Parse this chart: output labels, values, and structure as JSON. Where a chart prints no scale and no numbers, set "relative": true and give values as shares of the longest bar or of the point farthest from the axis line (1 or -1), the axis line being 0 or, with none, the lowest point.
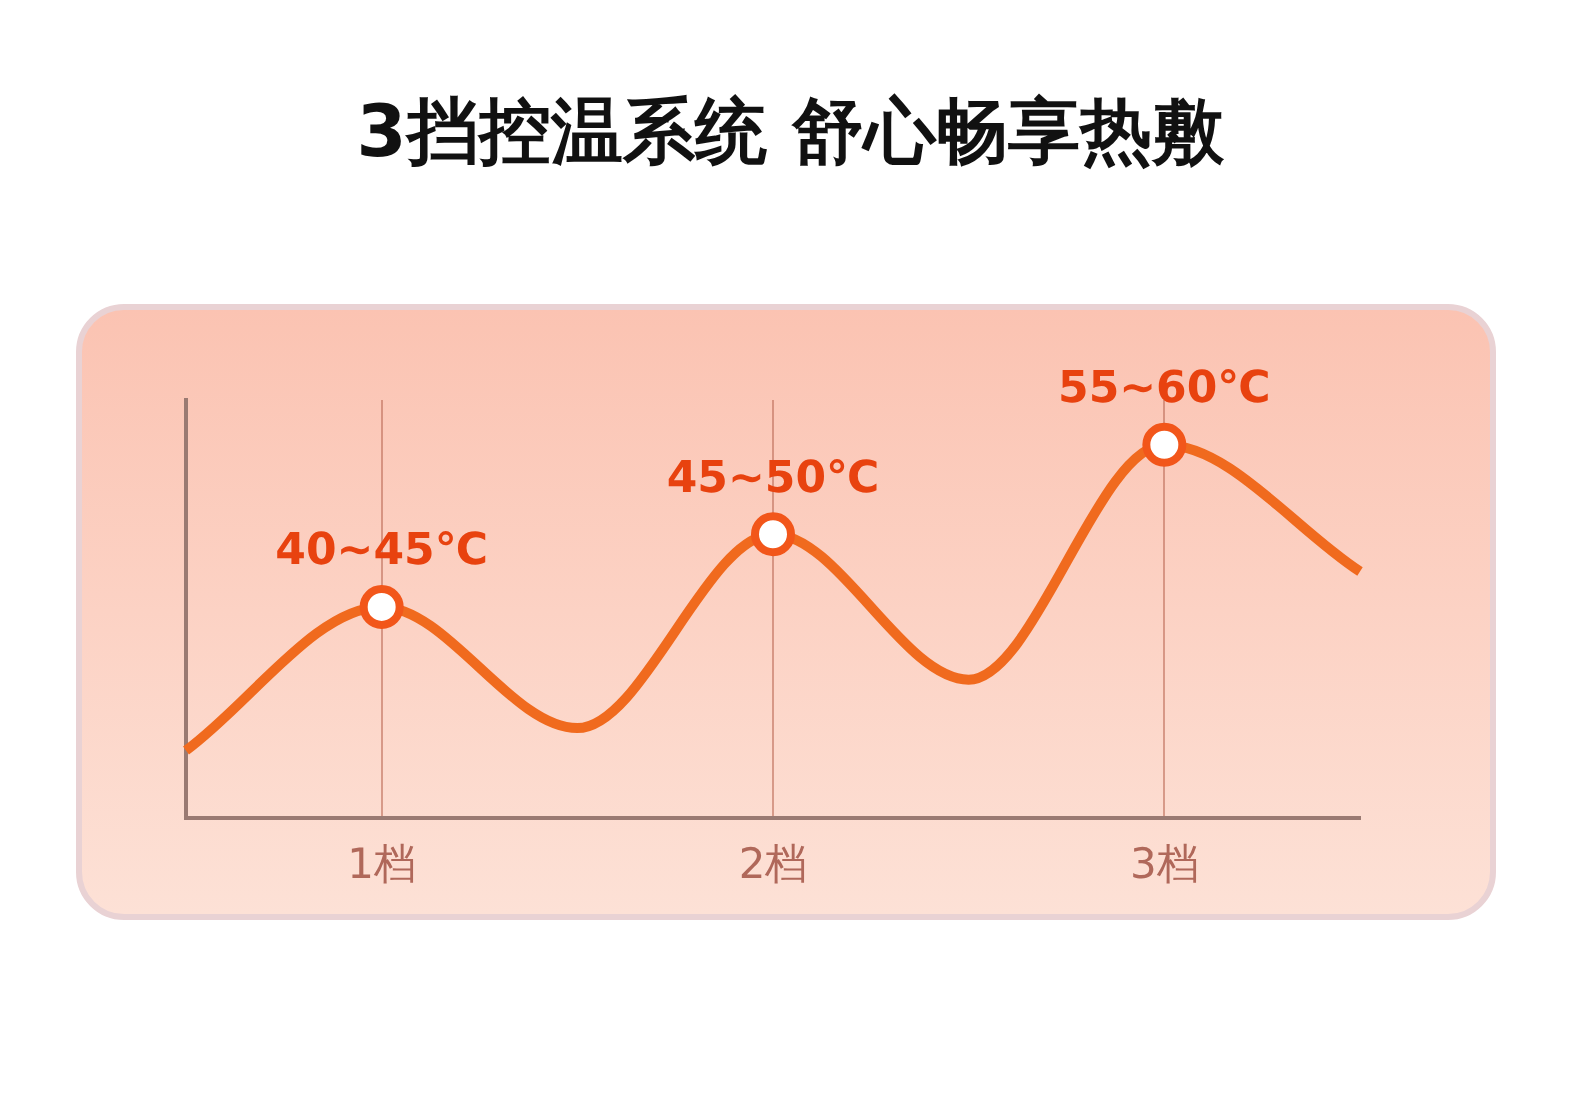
{
  "chart_data": {
    "type": "line",
    "title": "3挡控温系统 舒心畅享热敷",
    "categories": [
      null,
      "1档",
      null,
      "2档",
      null,
      "3档",
      null
    ],
    "relative": true,
    "series": [
      {
        "color": "#f06a1e",
        "marker": "none",
        "values": [
          0.18,
          0.565,
          0.24,
          0.76,
          0.37,
          1,
          0.66
        ]
      },
      {
        "type": "scatter",
        "color": "#f2561a",
        "x": [
          "1档",
          "2档",
          "3档"
        ],
        "values": [
          0.565,
          0.76,
          1
        ]
      }
    ],
    "annotations": [
      {
        "text": "40~45℃",
        "x": "1档",
        "y": 0.565
      },
      {
        "text": "45~50℃",
        "x": "2档",
        "y": 0.76
      },
      {
        "text": "55~60℃",
        "x": "3档",
        "y": 1
      }
    ],
    "marker": "circle",
    "grid": "x",
    "legend": false
  }
}
